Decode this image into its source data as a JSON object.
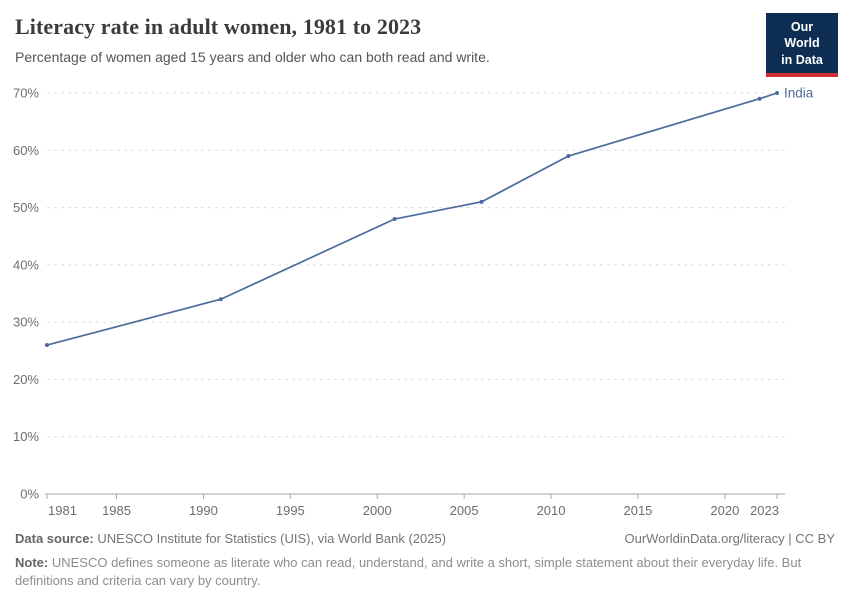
{
  "header": {
    "title": "Literacy rate in adult women, 1981 to 2023",
    "subtitle": "Percentage of women aged 15 years and older who can both read and write.",
    "logo_line1": "Our World",
    "logo_line2": "in Data"
  },
  "footer": {
    "source_label": "Data source:",
    "source_text": "UNESCO Institute for Statistics (UIS), via World Bank (2025)",
    "link": "OurWorldinData.org/literacy | CC BY",
    "note_label": "Note:",
    "note_text": "UNESCO defines someone as literate who can read, understand, and write a short, simple statement about their everyday life. But definitions and criteria can vary by country."
  },
  "colors": {
    "series_blue": "#4C6A9C",
    "grid": "#dedede",
    "axis": "#a8a8a8",
    "tick_text": "#6e6e6e",
    "title_text": "#3b3b3b",
    "subtitle_text": "#555555",
    "logo_bg": "#0d2d52",
    "logo_stripe": "#d22e33"
  },
  "chart_data": {
    "type": "line",
    "title": "Literacy rate in adult women, 1981 to 2023",
    "subtitle": "Percentage of women aged 15 years and older who can both read and write.",
    "xlabel": "",
    "ylabel": "",
    "xlim": [
      1981,
      2023
    ],
    "ylim": [
      0,
      70
    ],
    "x_ticks": [
      1981,
      1985,
      1990,
      1995,
      2000,
      2005,
      2010,
      2015,
      2020,
      2023
    ],
    "y_ticks": [
      0,
      10,
      20,
      30,
      40,
      50,
      60,
      70
    ],
    "y_tick_suffix": "%",
    "grid": "horizontal-dashed",
    "legend_position": "end-of-line",
    "series": [
      {
        "name": "India",
        "color": "#4C6A9C",
        "points": [
          {
            "year": 1981,
            "value": 26
          },
          {
            "year": 1991,
            "value": 34
          },
          {
            "year": 2001,
            "value": 48
          },
          {
            "year": 2006,
            "value": 51
          },
          {
            "year": 2011,
            "value": 59
          },
          {
            "year": 2022,
            "value": 69
          },
          {
            "year": 2023,
            "value": 70
          }
        ]
      }
    ]
  }
}
